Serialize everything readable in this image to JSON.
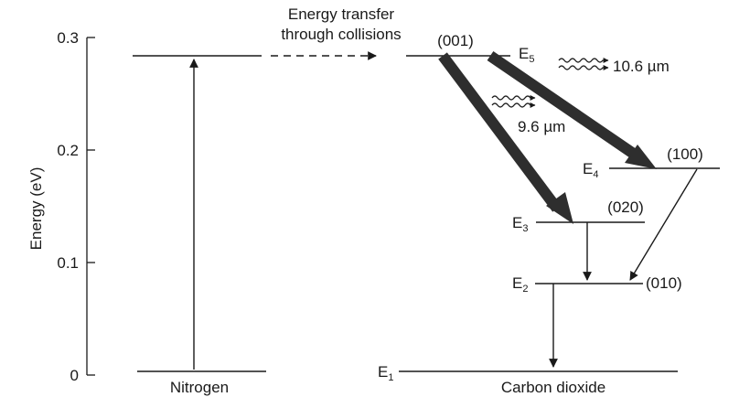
{
  "title": "Energy transfer through collisions",
  "y_axis": {
    "label": "Energy (eV)",
    "ticks": [
      "0.3",
      "0.2",
      "0.1",
      "0"
    ]
  },
  "transfer_label": {
    "line1": "Energy transfer",
    "line2": "through collisions"
  },
  "nitrogen": {
    "label": "Nitrogen"
  },
  "co2": {
    "label": "Carbon dioxide",
    "levels": {
      "e5": {
        "letter": "E",
        "sub": "5",
        "mode": "(001)"
      },
      "e4": {
        "letter": "E",
        "sub": "4",
        "mode": "(100)"
      },
      "e3": {
        "letter": "E",
        "sub": "3",
        "mode": "(020)"
      },
      "e2": {
        "letter": "E",
        "sub": "2",
        "mode": "(010)"
      },
      "e1": {
        "letter": "E",
        "sub": "1"
      }
    }
  },
  "emissions": {
    "laser_10_6": "10.6 µm",
    "laser_9_6": "9.6 µm"
  }
}
